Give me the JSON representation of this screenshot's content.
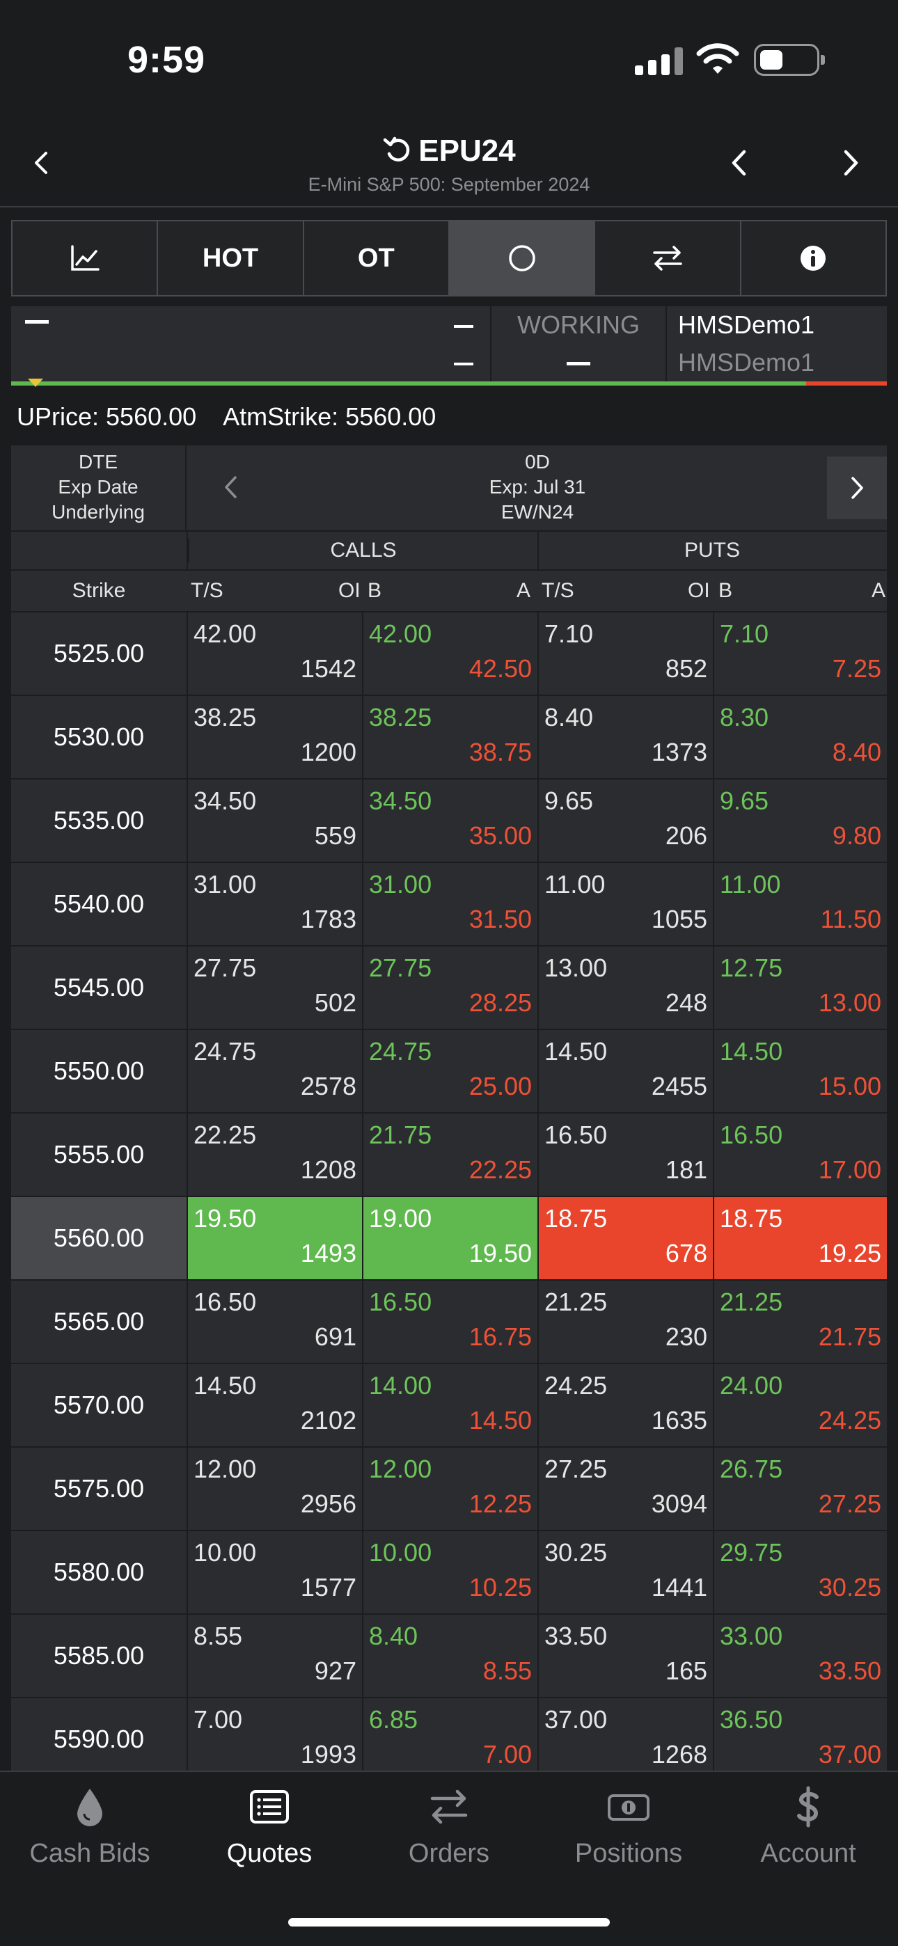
{
  "status": {
    "time": "9:59"
  },
  "header": {
    "symbol": "EPU24",
    "subtitle": "E-Mini S&P 500: September 2024"
  },
  "toolbar": {
    "hot_label": "HOT",
    "ot_label": "OT"
  },
  "account": {
    "left_dash": "—",
    "working_label": "WORKING",
    "account_primary": "HMSDemo1",
    "account_secondary": "HMSDemo1"
  },
  "prices": {
    "uprice": "UPrice: 5560.00",
    "atm_strike": "AtmStrike: 5560.00"
  },
  "expiry": {
    "left_labels": [
      "DTE",
      "Exp Date",
      "Underlying"
    ],
    "dte": "0D",
    "exp_date": "Exp: Jul 31",
    "underlying": "EW/N24"
  },
  "headers": {
    "calls": "CALLS",
    "puts": "PUTS",
    "strike": "Strike",
    "ts": "T/S",
    "oi": "OI",
    "b": "B",
    "a": "A"
  },
  "rows": [
    {
      "strike": "5525.00",
      "c_ts": "42.00",
      "c_oi": "1542",
      "c_b": "42.00",
      "c_a": "42.50",
      "p_ts": "7.10",
      "p_oi": "852",
      "p_b": "7.10",
      "p_a": "7.25"
    },
    {
      "strike": "5530.00",
      "c_ts": "38.25",
      "c_oi": "1200",
      "c_b": "38.25",
      "c_a": "38.75",
      "p_ts": "8.40",
      "p_oi": "1373",
      "p_b": "8.30",
      "p_a": "8.40"
    },
    {
      "strike": "5535.00",
      "c_ts": "34.50",
      "c_oi": "559",
      "c_b": "34.50",
      "c_a": "35.00",
      "p_ts": "9.65",
      "p_oi": "206",
      "p_b": "9.65",
      "p_a": "9.80"
    },
    {
      "strike": "5540.00",
      "c_ts": "31.00",
      "c_oi": "1783",
      "c_b": "31.00",
      "c_a": "31.50",
      "p_ts": "11.00",
      "p_oi": "1055",
      "p_b": "11.00",
      "p_a": "11.50"
    },
    {
      "strike": "5545.00",
      "c_ts": "27.75",
      "c_oi": "502",
      "c_b": "27.75",
      "c_a": "28.25",
      "p_ts": "13.00",
      "p_oi": "248",
      "p_b": "12.75",
      "p_a": "13.00"
    },
    {
      "strike": "5550.00",
      "c_ts": "24.75",
      "c_oi": "2578",
      "c_b": "24.75",
      "c_a": "25.00",
      "p_ts": "14.50",
      "p_oi": "2455",
      "p_b": "14.50",
      "p_a": "15.00"
    },
    {
      "strike": "5555.00",
      "c_ts": "22.25",
      "c_oi": "1208",
      "c_b": "21.75",
      "c_a": "22.25",
      "p_ts": "16.50",
      "p_oi": "181",
      "p_b": "16.50",
      "p_a": "17.00"
    },
    {
      "strike": "5560.00",
      "c_ts": "19.50",
      "c_oi": "1493",
      "c_b": "19.00",
      "c_a": "19.50",
      "p_ts": "18.75",
      "p_oi": "678",
      "p_b": "18.75",
      "p_a": "19.25",
      "atm": true
    },
    {
      "strike": "5565.00",
      "c_ts": "16.50",
      "c_oi": "691",
      "c_b": "16.50",
      "c_a": "16.75",
      "p_ts": "21.25",
      "p_oi": "230",
      "p_b": "21.25",
      "p_a": "21.75"
    },
    {
      "strike": "5570.00",
      "c_ts": "14.50",
      "c_oi": "2102",
      "c_b": "14.00",
      "c_a": "14.50",
      "p_ts": "24.25",
      "p_oi": "1635",
      "p_b": "24.00",
      "p_a": "24.25"
    },
    {
      "strike": "5575.00",
      "c_ts": "12.00",
      "c_oi": "2956",
      "c_b": "12.00",
      "c_a": "12.25",
      "p_ts": "27.25",
      "p_oi": "3094",
      "p_b": "26.75",
      "p_a": "27.25"
    },
    {
      "strike": "5580.00",
      "c_ts": "10.00",
      "c_oi": "1577",
      "c_b": "10.00",
      "c_a": "10.25",
      "p_ts": "30.25",
      "p_oi": "1441",
      "p_b": "29.75",
      "p_a": "30.25"
    },
    {
      "strike": "5585.00",
      "c_ts": "8.55",
      "c_oi": "927",
      "c_b": "8.40",
      "c_a": "8.55",
      "p_ts": "33.50",
      "p_oi": "165",
      "p_b": "33.00",
      "p_a": "33.50"
    },
    {
      "strike": "5590.00",
      "c_ts": "7.00",
      "c_oi": "1993",
      "c_b": "6.85",
      "c_a": "7.00",
      "p_ts": "37.00",
      "p_oi": "1268",
      "p_b": "36.50",
      "p_a": "37.00"
    }
  ],
  "nav": [
    {
      "label": "Cash Bids",
      "icon": "drop-icon"
    },
    {
      "label": "Quotes",
      "icon": "list-icon",
      "active": true
    },
    {
      "label": "Orders",
      "icon": "swap-icon"
    },
    {
      "label": "Positions",
      "icon": "money-icon"
    },
    {
      "label": "Account",
      "icon": "dollar-icon"
    }
  ],
  "colors": {
    "background": "#1b1c1e",
    "panel": "#2b2c2f",
    "bid_green": "#6cc45a",
    "ask_red": "#ef5137",
    "atm_green": "#5fb94e",
    "atm_red": "#e8452c"
  }
}
